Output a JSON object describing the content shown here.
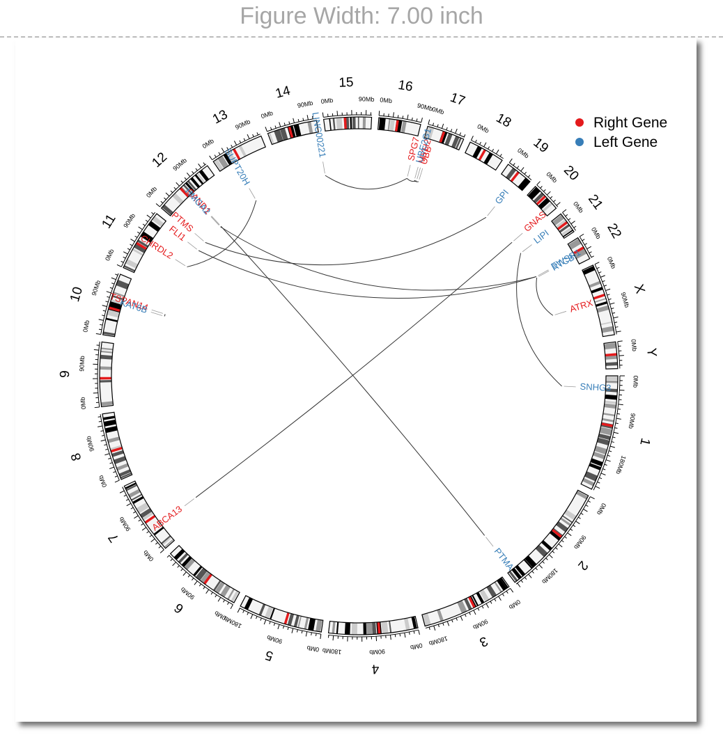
{
  "header": {
    "figure_width_label": "Figure Width: 7.00 inch"
  },
  "legend": [
    {
      "label": "Right Gene",
      "color": "#e41a1c"
    },
    {
      "label": "Left Gene",
      "color": "#377eb8"
    }
  ],
  "colors": {
    "right": "#e41a1c",
    "left": "#377eb8",
    "link": "#333333"
  },
  "chromosomes": [
    {
      "name": "1",
      "size": 249,
      "ticks": [
        "0Mb",
        "90Mb",
        "180Mb"
      ]
    },
    {
      "name": "2",
      "size": 243,
      "ticks": [
        "0Mb",
        "90Mb",
        "180Mb"
      ]
    },
    {
      "name": "3",
      "size": 198,
      "ticks": [
        "0Mb",
        "90Mb",
        "180Mb"
      ]
    },
    {
      "name": "4",
      "size": 191,
      "ticks": [
        "0Mb",
        "90Mb",
        "180Mb"
      ]
    },
    {
      "name": "5",
      "size": 181,
      "ticks": [
        "0Mb",
        "90Mb",
        "180Mb"
      ]
    },
    {
      "name": "6",
      "size": 171,
      "ticks": [
        "0Mb",
        "90Mb"
      ]
    },
    {
      "name": "7",
      "size": 159,
      "ticks": [
        "0Mb",
        "90Mb"
      ]
    },
    {
      "name": "8",
      "size": 145,
      "ticks": [
        "0Mb",
        "90Mb"
      ]
    },
    {
      "name": "9",
      "size": 138,
      "ticks": [
        "0Mb",
        "90Mb"
      ]
    },
    {
      "name": "10",
      "size": 134,
      "ticks": [
        "0Mb",
        "90Mb"
      ]
    },
    {
      "name": "11",
      "size": 135,
      "ticks": [
        "0Mb",
        "90Mb"
      ]
    },
    {
      "name": "12",
      "size": 133,
      "ticks": [
        "0Mb",
        "90Mb"
      ]
    },
    {
      "name": "13",
      "size": 115,
      "ticks": [
        "0Mb",
        "90Mb"
      ]
    },
    {
      "name": "14",
      "size": 107,
      "ticks": [
        "0Mb",
        "90Mb"
      ]
    },
    {
      "name": "15",
      "size": 102,
      "ticks": [
        "0Mb",
        "90Mb"
      ]
    },
    {
      "name": "16",
      "size": 90,
      "ticks": [
        "0Mb",
        "90Mb"
      ]
    },
    {
      "name": "17",
      "size": 81,
      "ticks": [
        "0Mb"
      ]
    },
    {
      "name": "18",
      "size": 78,
      "ticks": [
        "0Mb"
      ]
    },
    {
      "name": "19",
      "size": 59,
      "ticks": [
        "0Mb"
      ]
    },
    {
      "name": "20",
      "size": 64,
      "ticks": [
        "0Mb"
      ]
    },
    {
      "name": "21",
      "size": 47,
      "ticks": [
        "0Mb"
      ]
    },
    {
      "name": "22",
      "size": 51,
      "ticks": [
        "0Mb"
      ]
    },
    {
      "name": "X",
      "size": 155,
      "ticks": [
        "0Mb",
        "90Mb"
      ]
    },
    {
      "name": "Y",
      "size": 57,
      "ticks": [
        "0Mb"
      ]
    }
  ],
  "genes": [
    {
      "name": "ATRX",
      "side": "right",
      "chrom": "X",
      "pos": 77
    },
    {
      "name": "EWSR1",
      "side": "left",
      "chrom": "22",
      "pos": 29
    },
    {
      "name": "RTCB",
      "side": "left",
      "chrom": "22",
      "pos": 32
    },
    {
      "name": "LIPI",
      "side": "left",
      "chrom": "21",
      "pos": 15
    },
    {
      "name": "GNAS",
      "side": "right",
      "chrom": "20",
      "pos": 57
    },
    {
      "name": "GPI",
      "side": "left",
      "chrom": "19",
      "pos": 34
    },
    {
      "name": "UBB",
      "side": "right",
      "chrom": "17",
      "pos": 16
    },
    {
      "name": "MYH2",
      "side": "right",
      "chrom": "17",
      "pos": 10
    },
    {
      "name": "UBE2G1",
      "side": "left",
      "chrom": "17",
      "pos": 4
    },
    {
      "name": "SPG7",
      "side": "right",
      "chrom": "16",
      "pos": 89
    },
    {
      "name": "LINC00221",
      "side": "left",
      "chrom": "14",
      "pos": 106
    },
    {
      "name": "SUPT20H",
      "side": "left",
      "chrom": "13",
      "pos": 37
    },
    {
      "name": "CAND1",
      "side": "right",
      "chrom": "12",
      "pos": 67
    },
    {
      "name": "HMGA2",
      "side": "left",
      "chrom": "12",
      "pos": 65
    },
    {
      "name": "PTMS",
      "side": "right",
      "chrom": "12",
      "pos": 6
    },
    {
      "name": "FLI1",
      "side": "right",
      "chrom": "11",
      "pos": 128
    },
    {
      "name": "CHRDL2",
      "side": "right",
      "chrom": "11",
      "pos": 74
    },
    {
      "name": "TSPAN14",
      "side": "right",
      "chrom": "10",
      "pos": 82
    },
    {
      "name": "KAT6B",
      "side": "left",
      "chrom": "10",
      "pos": 76
    },
    {
      "name": "ABCA13",
      "side": "right",
      "chrom": "7",
      "pos": 48
    },
    {
      "name": "PTMA",
      "side": "left",
      "chrom": "2",
      "pos": 232
    },
    {
      "name": "SNHG3",
      "side": "left",
      "chrom": "1",
      "pos": 28
    }
  ],
  "links": [
    [
      "LINC00221",
      "SPG7"
    ],
    [
      "UBE2G1",
      "UBB"
    ],
    [
      "SPG7",
      "MYH2"
    ],
    [
      "MYH2",
      "UBE2G1"
    ],
    [
      "SUPT20H",
      "CHRDL2"
    ],
    [
      "HMGA2",
      "EWSR1"
    ],
    [
      "CAND1",
      "PTMA"
    ],
    [
      "ABCA13",
      "GNAS"
    ],
    [
      "FLI1",
      "EWSR1"
    ],
    [
      "TSPAN14",
      "KAT6B"
    ],
    [
      "ATRX",
      "RTCB"
    ],
    [
      "LIPI",
      "SNHG3"
    ],
    [
      "GPI",
      "PTMS"
    ]
  ]
}
